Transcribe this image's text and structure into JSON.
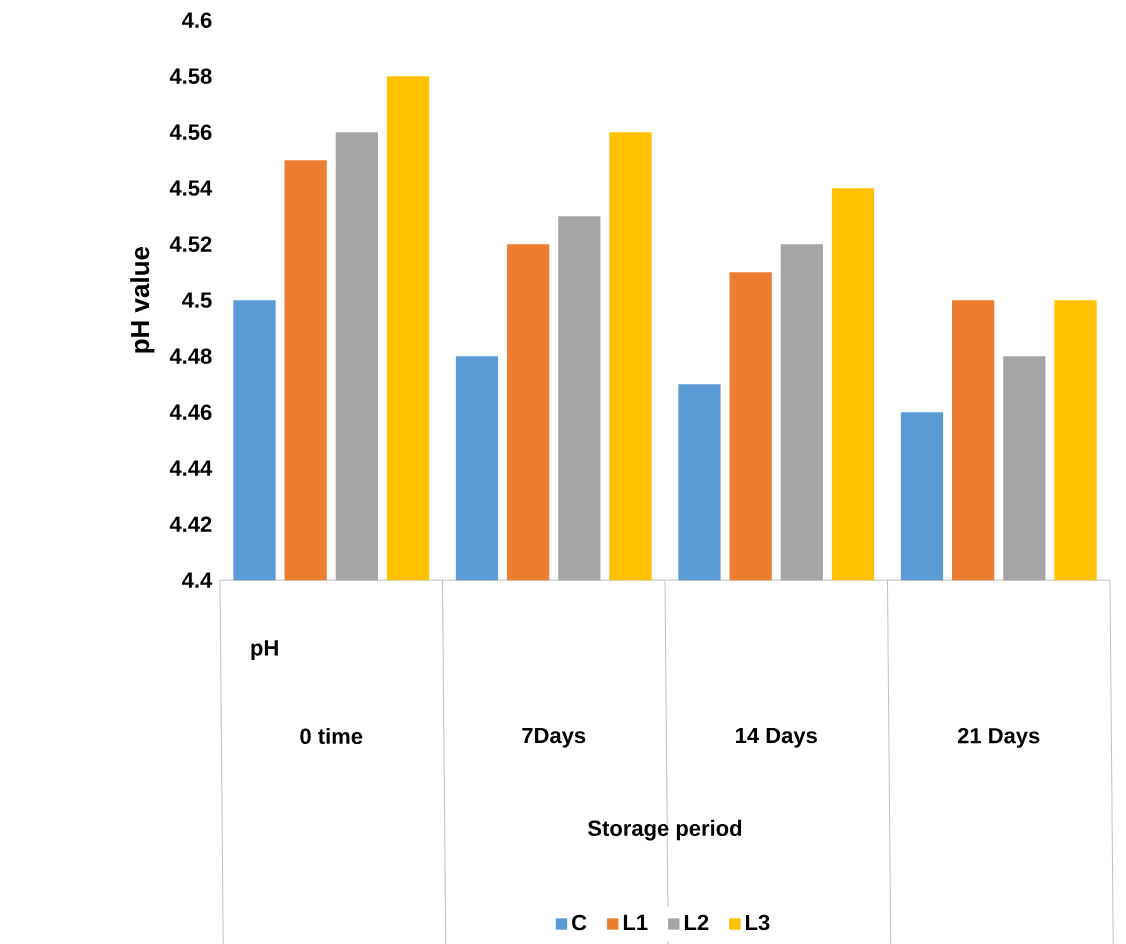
{
  "chart_data": {
    "type": "bar",
    "ylabel": "pH value",
    "xlabel": "Storage period",
    "annotations": [
      "pH"
    ],
    "categories": [
      "0 time",
      "7Days",
      "14 Days",
      "21 Days"
    ],
    "series": [
      {
        "name": "C",
        "color": "#5b9bd5",
        "values": [
          4.5,
          4.48,
          4.47,
          4.46
        ]
      },
      {
        "name": "L1",
        "color": "#ed7d31",
        "values": [
          4.55,
          4.52,
          4.51,
          4.5
        ]
      },
      {
        "name": "L2",
        "color": "#a5a5a5",
        "values": [
          4.56,
          4.53,
          4.52,
          4.48
        ]
      },
      {
        "name": "L3",
        "color": "#ffc000",
        "values": [
          4.58,
          4.56,
          4.54,
          4.5
        ]
      }
    ],
    "ylim": [
      4.4,
      4.6
    ],
    "yticks": [
      4.4,
      4.42,
      4.44,
      4.46,
      4.48,
      4.5,
      4.52,
      4.54,
      4.56,
      4.58,
      4.6
    ],
    "grid": false,
    "legend": "bottom"
  }
}
